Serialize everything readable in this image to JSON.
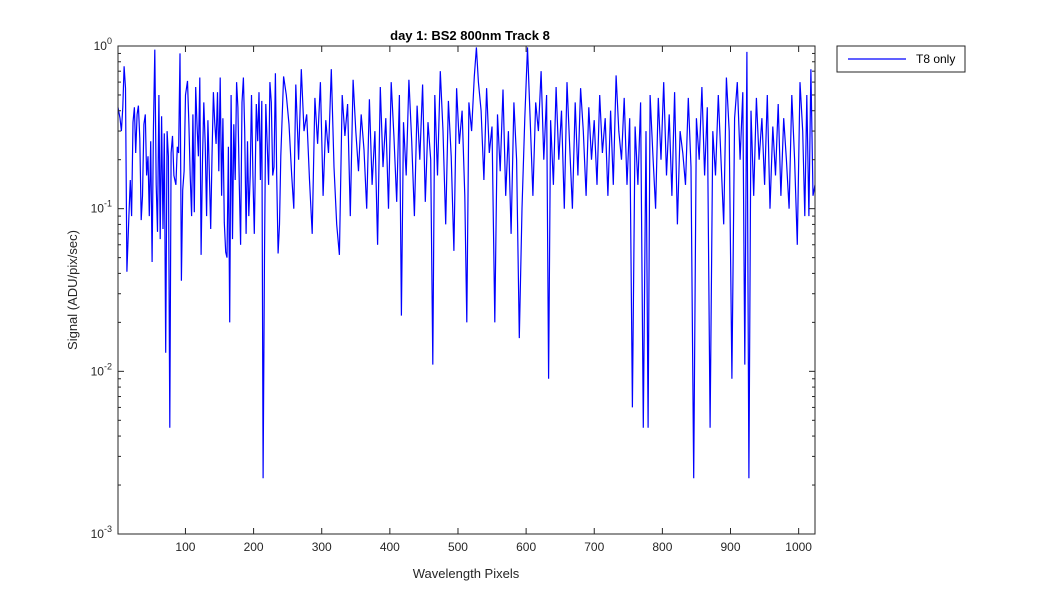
{
  "chart_data": {
    "type": "line",
    "title": "day 1: BS2  800nm  Track 8",
    "xlabel": "Wavelength Pixels",
    "ylabel": "Signal (ADU/pix/sec)",
    "xlim": [
      1,
      1024
    ],
    "ylim": [
      0.001,
      1
    ],
    "yscale": "log",
    "x_ticks": [
      100,
      200,
      300,
      400,
      500,
      600,
      700,
      800,
      900,
      1000
    ],
    "y_ticks": [
      {
        "value": 0.001,
        "base": "10",
        "exp": "-3"
      },
      {
        "value": 0.01,
        "base": "10",
        "exp": "-2"
      },
      {
        "value": 0.1,
        "base": "10",
        "exp": "-1"
      },
      {
        "value": 1,
        "base": "10",
        "exp": "0"
      }
    ],
    "grid": false,
    "legend_position": "outside-top-right",
    "series": [
      {
        "name": "T8 only",
        "color": "#0000ff",
        "points": [
          [
            1,
            0.42
          ],
          [
            4,
            0.36
          ],
          [
            6,
            0.3
          ],
          [
            8,
            0.42
          ],
          [
            10,
            0.75
          ],
          [
            12,
            0.55
          ],
          [
            14,
            0.041
          ],
          [
            17,
            0.09
          ],
          [
            19,
            0.15
          ],
          [
            21,
            0.09
          ],
          [
            23,
            0.34
          ],
          [
            25,
            0.42
          ],
          [
            27,
            0.22
          ],
          [
            29,
            0.38
          ],
          [
            31,
            0.43
          ],
          [
            33,
            0.27
          ],
          [
            35,
            0.085
          ],
          [
            37,
            0.12
          ],
          [
            39,
            0.33
          ],
          [
            41,
            0.38
          ],
          [
            43,
            0.16
          ],
          [
            45,
            0.21
          ],
          [
            47,
            0.09
          ],
          [
            49,
            0.26
          ],
          [
            51,
            0.047
          ],
          [
            53,
            0.3
          ],
          [
            55,
            0.95
          ],
          [
            57,
            0.14
          ],
          [
            59,
            0.072
          ],
          [
            61,
            0.5
          ],
          [
            63,
            0.065
          ],
          [
            65,
            0.37
          ],
          [
            67,
            0.075
          ],
          [
            69,
            0.29
          ],
          [
            71,
            0.013
          ],
          [
            73,
            0.3
          ],
          [
            75,
            0.21
          ],
          [
            77,
            0.0045
          ],
          [
            79,
            0.22
          ],
          [
            81,
            0.28
          ],
          [
            83,
            0.16
          ],
          [
            86,
            0.14
          ],
          [
            88,
            0.24
          ],
          [
            90,
            0.22
          ],
          [
            92,
            0.9
          ],
          [
            94,
            0.036
          ],
          [
            96,
            0.13
          ],
          [
            98,
            0.17
          ],
          [
            100,
            0.5
          ],
          [
            103,
            0.61
          ],
          [
            105,
            0.33
          ],
          [
            107,
            0.16
          ],
          [
            109,
            0.09
          ],
          [
            111,
            0.38
          ],
          [
            113,
            0.095
          ],
          [
            115,
            0.56
          ],
          [
            117,
            0.33
          ],
          [
            119,
            0.21
          ],
          [
            121,
            0.64
          ],
          [
            123,
            0.052
          ],
          [
            125,
            0.2
          ],
          [
            127,
            0.45
          ],
          [
            129,
            0.25
          ],
          [
            131,
            0.09
          ],
          [
            133,
            0.35
          ],
          [
            135,
            0.17
          ],
          [
            137,
            0.075
          ],
          [
            139,
            0.21
          ],
          [
            141,
            0.52
          ],
          [
            143,
            0.34
          ],
          [
            145,
            0.25
          ],
          [
            147,
            0.52
          ],
          [
            149,
            0.17
          ],
          [
            151,
            0.64
          ],
          [
            153,
            0.12
          ],
          [
            155,
            0.36
          ],
          [
            157,
            0.082
          ],
          [
            159,
            0.054
          ],
          [
            161,
            0.05
          ],
          [
            163,
            0.24
          ],
          [
            165,
            0.02
          ],
          [
            167,
            0.5
          ],
          [
            169,
            0.065
          ],
          [
            171,
            0.33
          ],
          [
            173,
            0.15
          ],
          [
            175,
            0.6
          ],
          [
            177,
            0.42
          ],
          [
            179,
            0.14
          ],
          [
            181,
            0.06
          ],
          [
            183,
            0.45
          ],
          [
            185,
            0.64
          ],
          [
            187,
            0.3
          ],
          [
            189,
            0.07
          ],
          [
            191,
            0.26
          ],
          [
            193,
            0.09
          ],
          [
            195,
            0.16
          ],
          [
            197,
            0.5
          ],
          [
            199,
            0.16
          ],
          [
            201,
            0.07
          ],
          [
            204,
            0.44
          ],
          [
            206,
            0.26
          ],
          [
            208,
            0.52
          ],
          [
            210,
            0.15
          ],
          [
            212,
            0.46
          ],
          [
            214,
            0.0022
          ],
          [
            216,
            0.052
          ],
          [
            218,
            0.44
          ],
          [
            220,
            0.25
          ],
          [
            222,
            0.14
          ],
          [
            224,
            0.6
          ],
          [
            226,
            0.45
          ],
          [
            228,
            0.16
          ],
          [
            230,
            0.18
          ],
          [
            232,
            0.68
          ],
          [
            234,
            0.16
          ],
          [
            236,
            0.053
          ],
          [
            238,
            0.08
          ],
          [
            240,
            0.21
          ],
          [
            244,
            0.65
          ],
          [
            248,
            0.5
          ],
          [
            252,
            0.33
          ],
          [
            256,
            0.16
          ],
          [
            259,
            0.1
          ],
          [
            262,
            0.58
          ],
          [
            266,
            0.2
          ],
          [
            270,
            0.72
          ],
          [
            274,
            0.3
          ],
          [
            278,
            0.38
          ],
          [
            282,
            0.15
          ],
          [
            286,
            0.07
          ],
          [
            290,
            0.48
          ],
          [
            294,
            0.25
          ],
          [
            298,
            0.6
          ],
          [
            302,
            0.12
          ],
          [
            306,
            0.35
          ],
          [
            310,
            0.22
          ],
          [
            314,
            0.72
          ],
          [
            318,
            0.18
          ],
          [
            322,
            0.08
          ],
          [
            326,
            0.052
          ],
          [
            330,
            0.5
          ],
          [
            334,
            0.28
          ],
          [
            338,
            0.44
          ],
          [
            342,
            0.09
          ],
          [
            346,
            0.62
          ],
          [
            350,
            0.3
          ],
          [
            354,
            0.17
          ],
          [
            358,
            0.38
          ],
          [
            362,
            0.23
          ],
          [
            366,
            0.1
          ],
          [
            370,
            0.47
          ],
          [
            374,
            0.14
          ],
          [
            378,
            0.3
          ],
          [
            382,
            0.06
          ],
          [
            386,
            0.56
          ],
          [
            390,
            0.18
          ],
          [
            394,
            0.36
          ],
          [
            398,
            0.1
          ],
          [
            402,
            0.6
          ],
          [
            406,
            0.28
          ],
          [
            410,
            0.11
          ],
          [
            414,
            0.5
          ],
          [
            417,
            0.022
          ],
          [
            420,
            0.34
          ],
          [
            424,
            0.16
          ],
          [
            428,
            0.62
          ],
          [
            432,
            0.26
          ],
          [
            436,
            0.09
          ],
          [
            440,
            0.43
          ],
          [
            444,
            0.2
          ],
          [
            448,
            0.58
          ],
          [
            452,
            0.11
          ],
          [
            456,
            0.34
          ],
          [
            460,
            0.2
          ],
          [
            463,
            0.011
          ],
          [
            466,
            0.5
          ],
          [
            470,
            0.16
          ],
          [
            474,
            0.7
          ],
          [
            478,
            0.3
          ],
          [
            482,
            0.08
          ],
          [
            486,
            0.46
          ],
          [
            490,
            0.21
          ],
          [
            494,
            0.055
          ],
          [
            498,
            0.55
          ],
          [
            502,
            0.25
          ],
          [
            506,
            0.4
          ],
          [
            510,
            0.12
          ],
          [
            513,
            0.02
          ],
          [
            516,
            0.45
          ],
          [
            520,
            0.3
          ],
          [
            524,
            0.65
          ],
          [
            527,
            0.98
          ],
          [
            530,
            0.6
          ],
          [
            534,
            0.4
          ],
          [
            538,
            0.15
          ],
          [
            542,
            0.55
          ],
          [
            546,
            0.22
          ],
          [
            550,
            0.32
          ],
          [
            554,
            0.02
          ],
          [
            558,
            0.38
          ],
          [
            562,
            0.17
          ],
          [
            566,
            0.54
          ],
          [
            570,
            0.12
          ],
          [
            574,
            0.3
          ],
          [
            578,
            0.07
          ],
          [
            582,
            0.45
          ],
          [
            586,
            0.2
          ],
          [
            590,
            0.016
          ],
          [
            594,
            0.1
          ],
          [
            598,
            0.36
          ],
          [
            602,
            0.98
          ],
          [
            606,
            0.35
          ],
          [
            610,
            0.12
          ],
          [
            614,
            0.45
          ],
          [
            618,
            0.3
          ],
          [
            622,
            0.7
          ],
          [
            626,
            0.2
          ],
          [
            630,
            0.5
          ],
          [
            633,
            0.009
          ],
          [
            636,
            0.35
          ],
          [
            640,
            0.14
          ],
          [
            644,
            0.56
          ],
          [
            648,
            0.2
          ],
          [
            652,
            0.4
          ],
          [
            656,
            0.1
          ],
          [
            660,
            0.6
          ],
          [
            664,
            0.24
          ],
          [
            668,
            0.1
          ],
          [
            672,
            0.45
          ],
          [
            676,
            0.16
          ],
          [
            680,
            0.55
          ],
          [
            684,
            0.3
          ],
          [
            688,
            0.12
          ],
          [
            692,
            0.42
          ],
          [
            696,
            0.2
          ],
          [
            700,
            0.35
          ],
          [
            704,
            0.14
          ],
          [
            708,
            0.5
          ],
          [
            712,
            0.22
          ],
          [
            716,
            0.36
          ],
          [
            720,
            0.12
          ],
          [
            724,
            0.4
          ],
          [
            728,
            0.14
          ],
          [
            732,
            0.66
          ],
          [
            736,
            0.3
          ],
          [
            740,
            0.2
          ],
          [
            744,
            0.48
          ],
          [
            748,
            0.14
          ],
          [
            752,
            0.36
          ],
          [
            756,
            0.006
          ],
          [
            760,
            0.32
          ],
          [
            764,
            0.14
          ],
          [
            768,
            0.45
          ],
          [
            772,
            0.0045
          ],
          [
            776,
            0.3
          ],
          [
            779,
            0.0045
          ],
          [
            782,
            0.5
          ],
          [
            786,
            0.22
          ],
          [
            790,
            0.1
          ],
          [
            794,
            0.48
          ],
          [
            798,
            0.2
          ],
          [
            802,
            0.6
          ],
          [
            806,
            0.16
          ],
          [
            810,
            0.38
          ],
          [
            814,
            0.12
          ],
          [
            818,
            0.52
          ],
          [
            822,
            0.08
          ],
          [
            826,
            0.3
          ],
          [
            830,
            0.22
          ],
          [
            834,
            0.14
          ],
          [
            838,
            0.48
          ],
          [
            842,
            0.18
          ],
          [
            846,
            0.0022
          ],
          [
            850,
            0.36
          ],
          [
            854,
            0.2
          ],
          [
            858,
            0.56
          ],
          [
            862,
            0.16
          ],
          [
            866,
            0.42
          ],
          [
            870,
            0.0045
          ],
          [
            874,
            0.3
          ],
          [
            878,
            0.16
          ],
          [
            882,
            0.5
          ],
          [
            886,
            0.2
          ],
          [
            890,
            0.08
          ],
          [
            894,
            0.64
          ],
          [
            898,
            0.3
          ],
          [
            902,
            0.009
          ],
          [
            906,
            0.36
          ],
          [
            910,
            0.6
          ],
          [
            914,
            0.2
          ],
          [
            918,
            0.52
          ],
          [
            921,
            0.011
          ],
          [
            924,
            0.92
          ],
          [
            927,
            0.0022
          ],
          [
            930,
            0.4
          ],
          [
            934,
            0.12
          ],
          [
            938,
            0.48
          ],
          [
            942,
            0.2
          ],
          [
            946,
            0.36
          ],
          [
            950,
            0.14
          ],
          [
            954,
            0.5
          ],
          [
            958,
            0.1
          ],
          [
            962,
            0.32
          ],
          [
            966,
            0.16
          ],
          [
            970,
            0.44
          ],
          [
            974,
            0.12
          ],
          [
            978,
            0.36
          ],
          [
            982,
            0.2
          ],
          [
            986,
            0.1
          ],
          [
            990,
            0.5
          ],
          [
            994,
            0.2
          ],
          [
            998,
            0.06
          ],
          [
            1002,
            0.6
          ],
          [
            1006,
            0.3
          ],
          [
            1009,
            0.09
          ],
          [
            1012,
            0.5
          ],
          [
            1015,
            0.09
          ],
          [
            1018,
            0.72
          ],
          [
            1021,
            0.12
          ],
          [
            1024,
            0.14
          ]
        ]
      }
    ]
  }
}
